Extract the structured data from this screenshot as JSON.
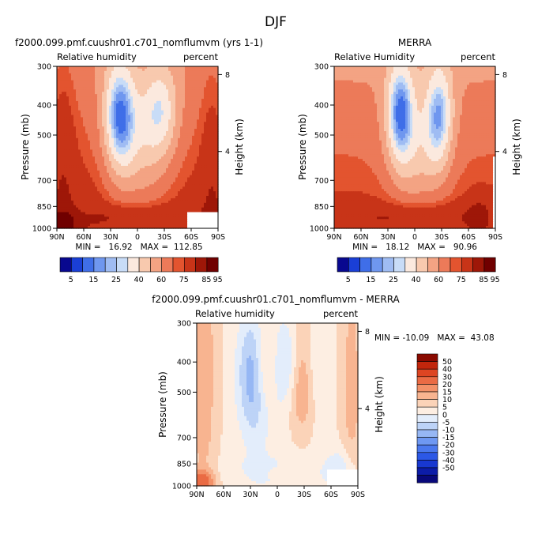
{
  "figure_title": "DJF",
  "chart_data": [
    {
      "type": "heatmap",
      "title": "f2000.099.pmf.cuushr01.c701_nomflumvm (yrs 1-1)",
      "left_label": "Relative humidity",
      "right_label": "percent",
      "ylabel": "Pressure (mb)",
      "y2label": "Height (km)",
      "xticks": [
        "90N",
        "60N",
        "30N",
        "0",
        "30S",
        "60S",
        "90S"
      ],
      "xlim": [
        90,
        -90
      ],
      "yticks": [
        "300",
        "400",
        "500",
        "700",
        "850",
        "1000"
      ],
      "ylim": [
        1000,
        300
      ],
      "y2ticks": [
        "8",
        "4"
      ],
      "stats": "MIN =   16.92   MAX =  112.85",
      "min": 16.92,
      "max": 112.85,
      "colorbar_labels": [
        "5",
        "15",
        "25",
        "40",
        "60",
        "75",
        "85",
        "95"
      ],
      "colorbar_orientation": "horizontal"
    },
    {
      "type": "heatmap",
      "title": "MERRA",
      "left_label": "Relative Humidity",
      "right_label": "percent",
      "ylabel": "Pressure (mb)",
      "y2label": "Height (km)",
      "xticks": [
        "90N",
        "60N",
        "30N",
        "0",
        "30S",
        "60S",
        "90S"
      ],
      "xlim": [
        90,
        -90
      ],
      "yticks": [
        "300",
        "400",
        "500",
        "700",
        "850",
        "1000"
      ],
      "ylim": [
        1000,
        300
      ],
      "y2ticks": [
        "8",
        "4"
      ],
      "stats": "MIN =   18.12   MAX =   90.96",
      "min": 18.12,
      "max": 90.96,
      "colorbar_labels": [
        "5",
        "15",
        "25",
        "40",
        "60",
        "75",
        "85",
        "95"
      ],
      "colorbar_orientation": "horizontal"
    },
    {
      "type": "heatmap",
      "title": "f2000.099.pmf.cuushr01.c701_nomflumvm - MERRA",
      "left_label": "Relative humidity",
      "right_label": "percent",
      "ylabel": "Pressure (mb)",
      "y2label": "Height (km)",
      "xticks": [
        "90N",
        "60N",
        "30N",
        "0",
        "30S",
        "60S",
        "90S"
      ],
      "xlim": [
        90,
        -90
      ],
      "yticks": [
        "300",
        "400",
        "500",
        "700",
        "850",
        "1000"
      ],
      "ylim": [
        1000,
        300
      ],
      "y2ticks": [
        "8",
        "4"
      ],
      "stats": "MIN = -10.09   MAX =  43.08",
      "min": -10.09,
      "max": 43.08,
      "colorbar_labels": [
        "50",
        "40",
        "30",
        "20",
        "15",
        "10",
        "5",
        "0",
        "-5",
        "-10",
        "-15",
        "-20",
        "-30",
        "-40",
        "-50"
      ],
      "colorbar_orientation": "vertical"
    }
  ],
  "palettes": {
    "absolute": [
      "#08088f",
      "#1a3fd6",
      "#3f6ee8",
      "#6f97ef",
      "#9fbcf3",
      "#c8dcf7",
      "#fbe9de",
      "#f8c9ae",
      "#f3a383",
      "#ec7a59",
      "#e3542f",
      "#c83418",
      "#9e1708",
      "#700000"
    ],
    "difference": [
      "#08087a",
      "#0c1ca8",
      "#1838d0",
      "#2c58e6",
      "#4a78ee",
      "#6e98f2",
      "#96b7f4",
      "#bdd3f7",
      "#e3edfb",
      "#fdeee2",
      "#fbd3b8",
      "#f8b490",
      "#f39168",
      "#ea6b44",
      "#dd4522",
      "#c2260c",
      "#8a0a00"
    ]
  }
}
